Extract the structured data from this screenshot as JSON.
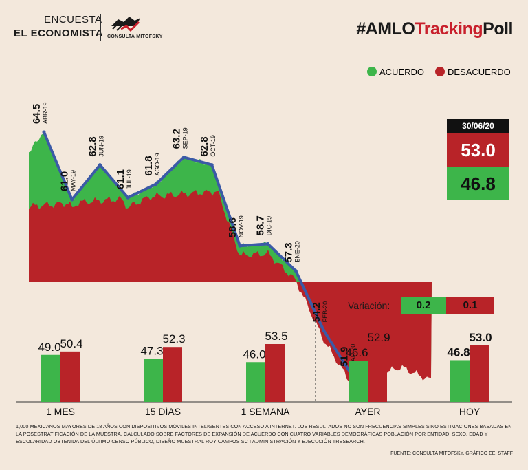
{
  "header": {
    "brand_line1": "ENCUESTA",
    "brand_line2": "EL ECONOMISTA",
    "logo_text": "CONSULTA MITOFSKY",
    "hashtag_prefix": "#AMLO",
    "hashtag_mid": "Tracking",
    "hashtag_suffix": "Poll"
  },
  "colors": {
    "acuerdo": "#3db54a",
    "desacuerdo": "#b82328",
    "trend_line": "#3b5aa6",
    "background": "#f3e8dc"
  },
  "legend": {
    "acuerdo": "ACUERDO",
    "desacuerdo": "DESACUERDO"
  },
  "current": {
    "date": "30/06/20",
    "desacuerdo": "53.0",
    "acuerdo": "46.8"
  },
  "variacion": {
    "label": "Variación:",
    "acuerdo": "0.2",
    "desacuerdo": "0.1"
  },
  "chart_data": [
    {
      "type": "area",
      "series": [
        {
          "name": "ACUERDO",
          "color": "#3db54a"
        },
        {
          "name": "DESACUERDO",
          "color": "#b82328"
        }
      ],
      "monthly_acuerdo": [
        {
          "label": "ABR-19",
          "value": "64.5"
        },
        {
          "label": "MAY-19",
          "value": "61.0"
        },
        {
          "label": "JUN-19",
          "value": "62.8"
        },
        {
          "label": "JUL-19",
          "value": "61.1"
        },
        {
          "label": "AGO-19",
          "value": "61.8"
        },
        {
          "label": "SEP-19",
          "value": "63.2"
        },
        {
          "label": "OCT-19",
          "value": "62.8"
        },
        {
          "label": "NOV-19",
          "value": "58.6"
        },
        {
          "label": "DIC-19",
          "value": "58.7"
        },
        {
          "label": "ENE-20",
          "value": "57.3"
        },
        {
          "label": "FEB-20",
          "value": "54.2"
        },
        {
          "label": "MAR-20",
          "value": "51.9"
        }
      ]
    },
    {
      "type": "bar",
      "categories": [
        "1 MES",
        "15 DÍAS",
        "1 SEMANA",
        "AYER",
        "HOY"
      ],
      "series": [
        {
          "name": "ACUERDO",
          "values": [
            49.0,
            47.3,
            46.0,
            46.6,
            46.8
          ],
          "labels": [
            "49.0",
            "47.3",
            "46.0",
            "46.6",
            "46.8"
          ]
        },
        {
          "name": "DESACUERDO",
          "values": [
            50.4,
            52.3,
            53.5,
            52.9,
            53.0
          ],
          "labels": [
            "50.4",
            "52.3",
            "53.5",
            "52.9",
            "53.0"
          ]
        }
      ]
    }
  ],
  "footnote": "1,000 mexicanos mayores de 18 años con dispositivos móviles inteligentes con acceso a internet. Los resultados no son frecuencias simples sino estimaciones basadas en la posestratificación de la muestra. Calculado sobre factores de expansión de acuerdo con cuatro variables demográficas población por entidad, sexo, edad y escolaridad obtenida del último censo público, diseño muestral Roy Campos SC I administración y ejecución TResearch.",
  "source": "Fuente: Consulta Mitofsky. Gráfico EE: Staff"
}
